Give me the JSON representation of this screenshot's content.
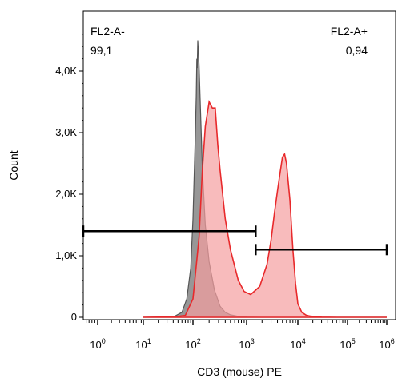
{
  "chart_data": {
    "type": "area",
    "xlabel": "CD3 (mouse) PE",
    "ylabel": "Count",
    "x_scale": "biexponential",
    "xlim": [
      0,
      1000000
    ],
    "ylim": [
      0,
      4800
    ],
    "y_ticks": [
      {
        "value": 0,
        "label": "0"
      },
      {
        "value": 1000,
        "label": "1,0K"
      },
      {
        "value": 2000,
        "label": "2,0K"
      },
      {
        "value": 3000,
        "label": "3,0K"
      },
      {
        "value": 4000,
        "label": "4,0K"
      }
    ],
    "x_ticks": [
      {
        "value": 1,
        "base": "10",
        "exp": "0"
      },
      {
        "value": 10,
        "base": "10",
        "exp": "1"
      },
      {
        "value": 100,
        "base": "10",
        "exp": "2"
      },
      {
        "value": 1000,
        "base": "10",
        "exp": "3"
      },
      {
        "value": 10000,
        "base": "10",
        "exp": "4"
      },
      {
        "value": 100000,
        "base": "10",
        "exp": "5"
      },
      {
        "value": 1000000,
        "base": "10",
        "exp": "6"
      }
    ],
    "series": [
      {
        "color": "#555555",
        "fill": "#8c8c8c",
        "x": [
          10,
          40,
          60,
          75,
          90,
          100,
          110,
          115,
          118,
          120,
          123,
          130,
          140,
          150,
          170,
          200,
          250,
          320,
          400,
          500,
          700,
          1000,
          2000,
          10000,
          1000000
        ],
        "y": [
          0,
          5,
          80,
          300,
          800,
          1600,
          2900,
          3600,
          4200,
          4050,
          4500,
          4100,
          3200,
          2400,
          1500,
          900,
          450,
          180,
          80,
          40,
          15,
          5,
          0,
          0,
          0
        ]
      },
      {
        "color": "#e8292b",
        "fill": "#f59ea0",
        "x": [
          10,
          40,
          70,
          100,
          130,
          150,
          170,
          200,
          230,
          260,
          290,
          320,
          400,
          500,
          700,
          900,
          1200,
          1800,
          2500,
          3000,
          3500,
          4000,
          4500,
          5000,
          5500,
          6000,
          7000,
          8000,
          9000,
          10000,
          12000,
          15000,
          20000,
          30000,
          60000,
          1000000
        ],
        "y": [
          0,
          5,
          30,
          300,
          1300,
          2400,
          3100,
          3500,
          3400,
          3400,
          2800,
          2400,
          1600,
          1100,
          600,
          420,
          370,
          500,
          860,
          1250,
          1700,
          2050,
          2350,
          2600,
          2650,
          2500,
          1900,
          1100,
          550,
          220,
          80,
          30,
          10,
          3,
          0,
          0
        ]
      }
    ],
    "gates": [
      {
        "name": "FL2-A-",
        "value": "99,1",
        "x_start": 0,
        "x_end": 1500,
        "y_level": 1400
      },
      {
        "name": "FL2-A+",
        "value": "0,94",
        "x_start": 1500,
        "x_end": 1000000,
        "y_level": 1100
      }
    ]
  }
}
